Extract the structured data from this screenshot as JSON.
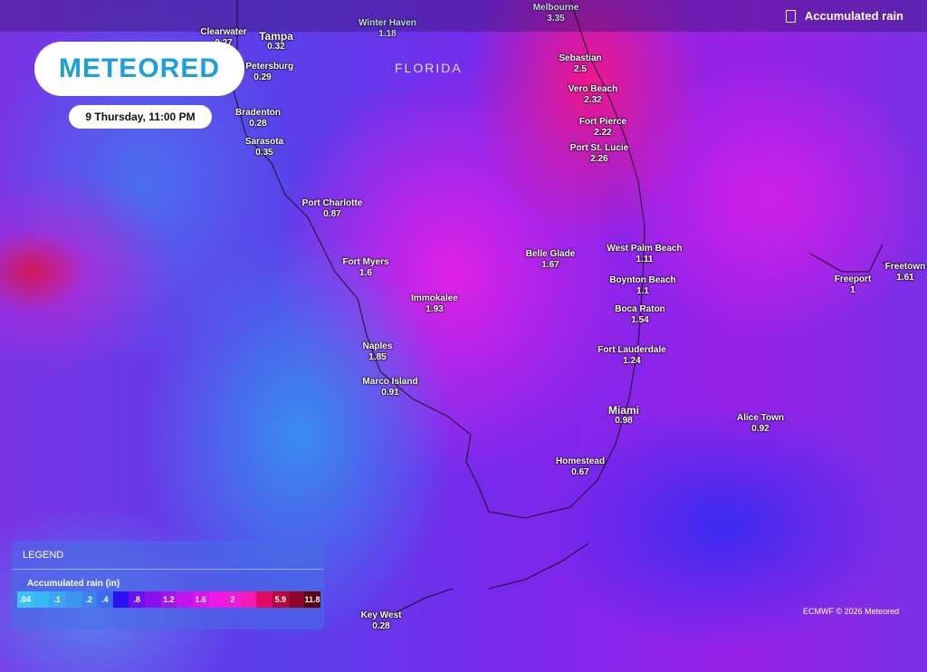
{
  "brand": {
    "logo": "METEORED"
  },
  "time_label": "9 Thursday, 11:00 PM",
  "layer": {
    "label": "Accumulated rain",
    "icon": "rain-gauge-icon"
  },
  "state_label": "FLORIDA",
  "cities": [
    {
      "name": "Winter Haven",
      "value": "1.18"
    },
    {
      "name": "Melbourne",
      "value": "3.35"
    },
    {
      "name": "Clearwater",
      "value": "0.27"
    },
    {
      "name": "Tampa",
      "value": "0.32"
    },
    {
      "name": "St. Petersburg",
      "value": "0.29"
    },
    {
      "name": "Sebastian",
      "value": "2.5"
    },
    {
      "name": "Vero Beach",
      "value": "2.32"
    },
    {
      "name": "Bradenton",
      "value": "0.28"
    },
    {
      "name": "Fort Pierce",
      "value": "2.22"
    },
    {
      "name": "Sarasota",
      "value": "0.35"
    },
    {
      "name": "Port St. Lucie",
      "value": "2.26"
    },
    {
      "name": "Port Charlotte",
      "value": "0.87"
    },
    {
      "name": "West Palm Beach",
      "value": "1.11"
    },
    {
      "name": "Belle Glade",
      "value": "1.67"
    },
    {
      "name": "Fort Myers",
      "value": "1.6"
    },
    {
      "name": "Boynton Beach",
      "value": "1.1"
    },
    {
      "name": "Freeport",
      "value": "1"
    },
    {
      "name": "Freetown",
      "value": "1.61"
    },
    {
      "name": "Immokalee",
      "value": "1.93"
    },
    {
      "name": "Boca Raton",
      "value": "1.54"
    },
    {
      "name": "Naples",
      "value": "1.85"
    },
    {
      "name": "Fort Lauderdale",
      "value": "1.24"
    },
    {
      "name": "Marco Island",
      "value": "0.91"
    },
    {
      "name": "Miami",
      "value": "0.98"
    },
    {
      "name": "Alice Town",
      "value": "0.92"
    },
    {
      "name": "Homestead",
      "value": "0.67"
    },
    {
      "name": "Key West",
      "value": "0.28"
    }
  ],
  "legend": {
    "title": "LEGEND",
    "subtitle": "Accumulated rain (in)",
    "stops": [
      {
        "label": ".04",
        "color": "#38c4f4"
      },
      {
        "label": "",
        "color": "#36b8f4"
      },
      {
        "label": ".1",
        "color": "#38a8f2"
      },
      {
        "label": "",
        "color": "#3a96f0"
      },
      {
        "label": ".2",
        "color": "#3a84f0"
      },
      {
        "label": ".4",
        "color": "#3a6cf0"
      },
      {
        "label": "",
        "color": "#2a10f4"
      },
      {
        "label": ".8",
        "color": "#6a10ec"
      },
      {
        "label": "",
        "color": "#8a10ec"
      },
      {
        "label": "1.2",
        "color": "#a414ec"
      },
      {
        "label": "",
        "color": "#c414ee"
      },
      {
        "label": "1.6",
        "color": "#dc14ee"
      },
      {
        "label": "",
        "color": "#ee18e8"
      },
      {
        "label": "2",
        "color": "#f01cd8"
      },
      {
        "label": "",
        "color": "#f41ab8"
      },
      {
        "label": "",
        "color": "#e00a60"
      },
      {
        "label": "5.9",
        "color": "#b8063c"
      },
      {
        "label": "",
        "color": "#900428"
      },
      {
        "label": "11.8",
        "color": "#5a0010"
      }
    ]
  },
  "credit": "ECMWF © 2026 Meteored"
}
